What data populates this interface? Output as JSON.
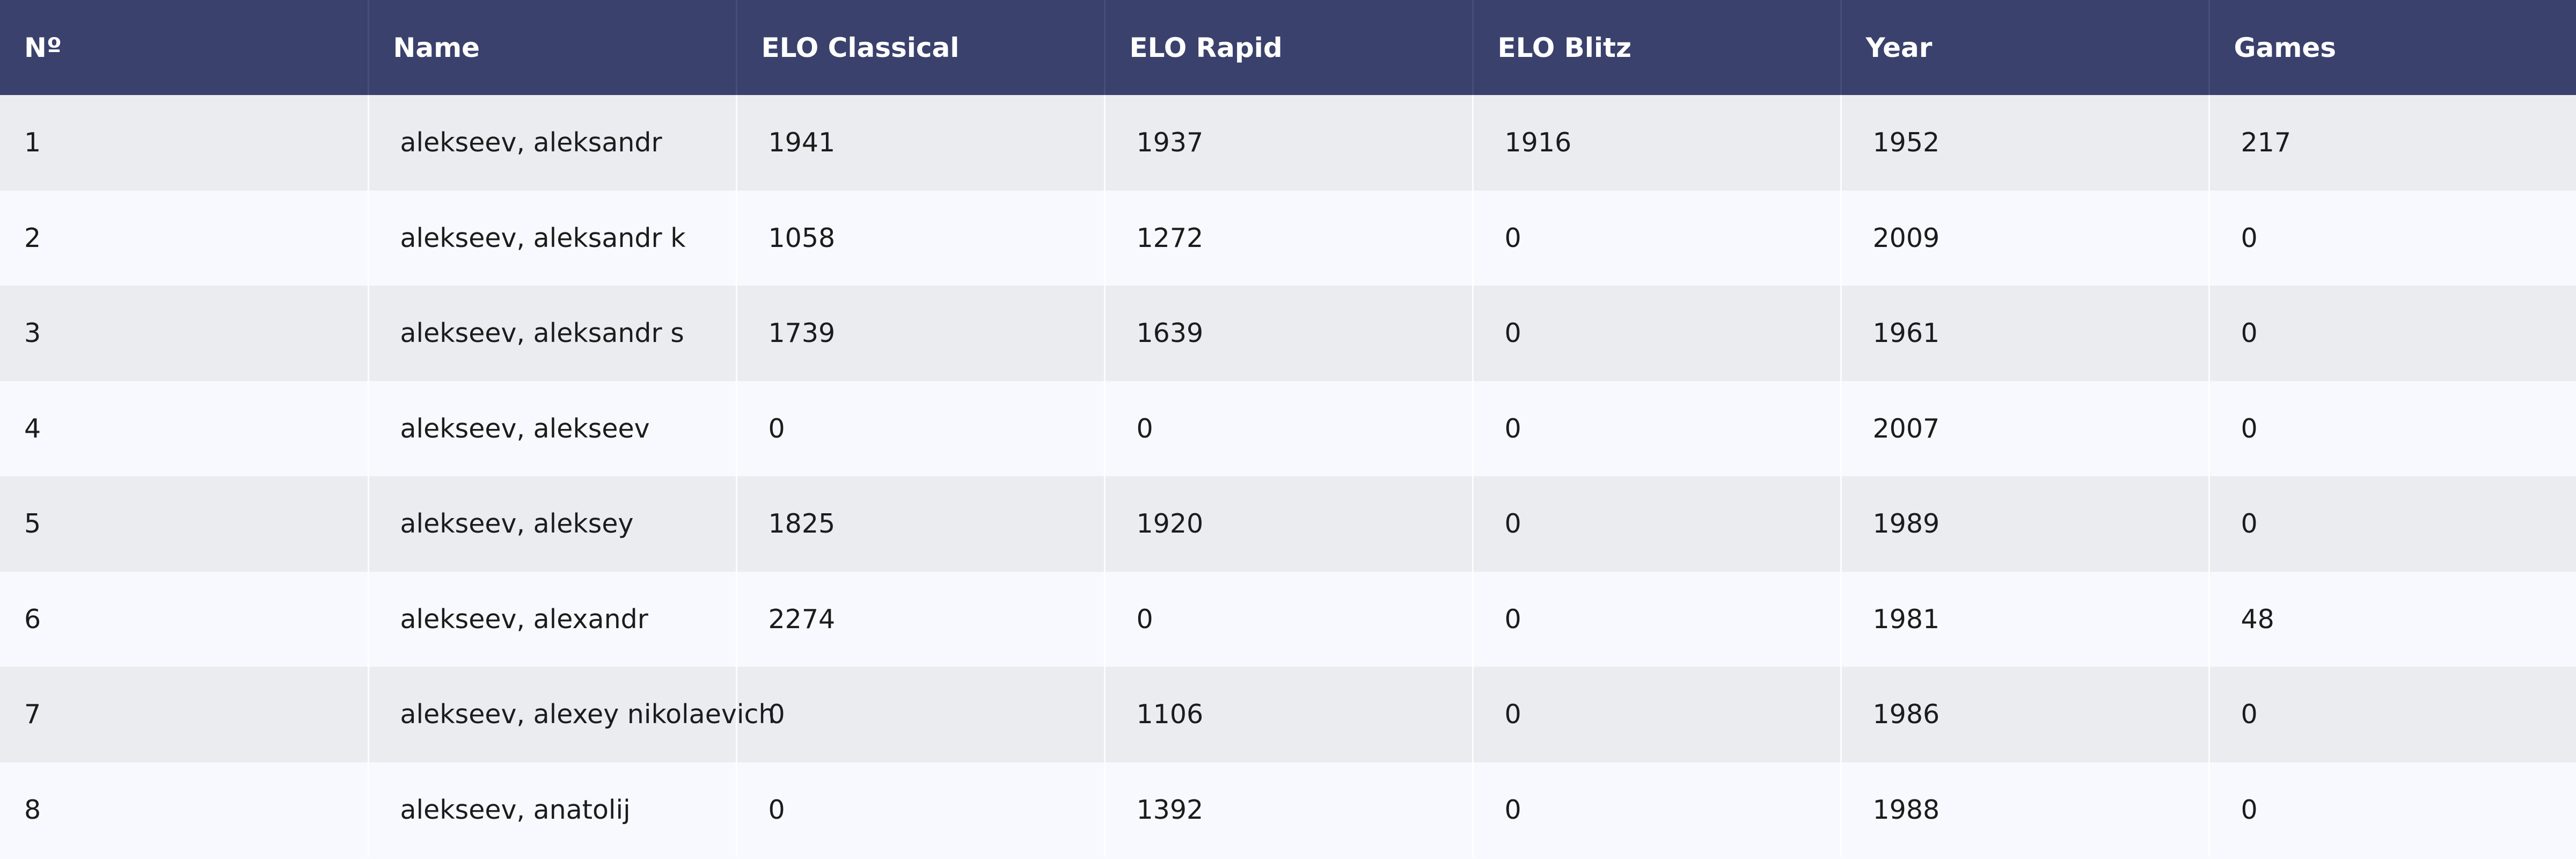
{
  "table": {
    "columns": [
      "Nº",
      "Name",
      "ELO Classical",
      "ELO Rapid",
      "ELO Blitz",
      "Year",
      "Games"
    ],
    "rows": [
      [
        "1",
        "alekseev, aleksandr",
        "1941",
        "1937",
        "1916",
        "1952",
        "217"
      ],
      [
        "2",
        "alekseev, aleksandr k",
        "1058",
        "1272",
        "0",
        "2009",
        "0"
      ],
      [
        "3",
        "alekseev, aleksandr s",
        "1739",
        "1639",
        "0",
        "1961",
        "0"
      ],
      [
        "4",
        "alekseev, alekseev",
        "0",
        "0",
        "0",
        "2007",
        "0"
      ],
      [
        "5",
        "alekseev, aleksey",
        "1825",
        "1920",
        "0",
        "1989",
        "0"
      ],
      [
        "6",
        "alekseev, alexandr",
        "2274",
        "0",
        "0",
        "1981",
        "48"
      ],
      [
        "7",
        "alekseev, alexey nikolaevich",
        "0",
        "1106",
        "0",
        "1986",
        "0"
      ],
      [
        "8",
        "alekseev, anatolij",
        "0",
        "1392",
        "0",
        "1988",
        "0"
      ]
    ]
  },
  "colors": {
    "header_bg": "#3a416c",
    "header_text": "#ffffff",
    "row_odd_bg": "#ebecf0",
    "row_even_bg": "#f8f9fe"
  }
}
